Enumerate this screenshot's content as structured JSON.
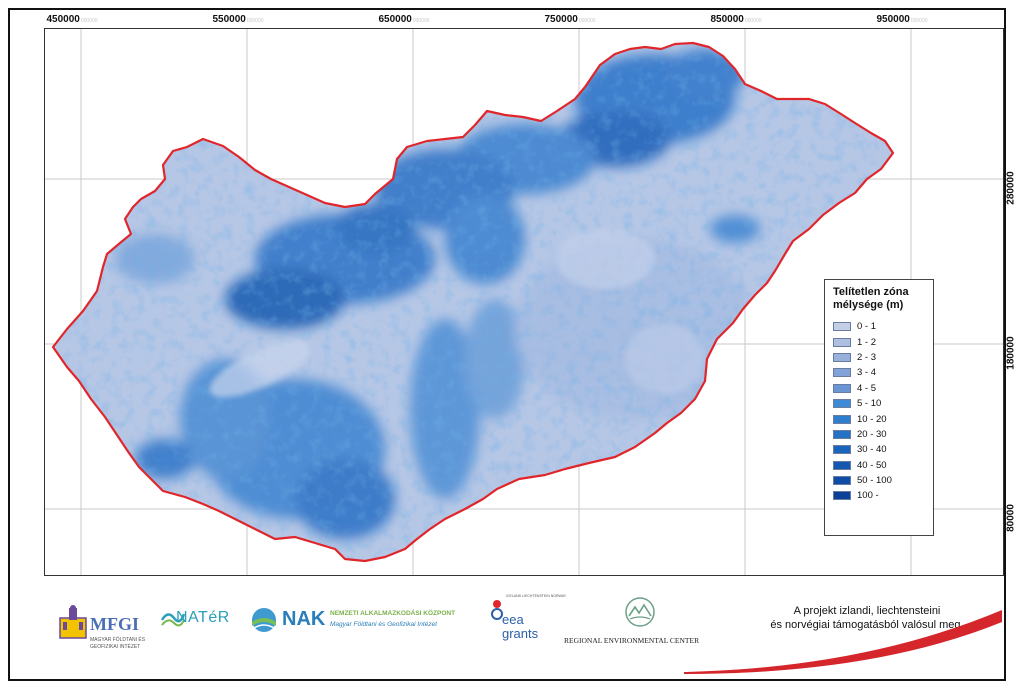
{
  "map": {
    "top_ticks": [
      "450000",
      "550000",
      "650000",
      "750000",
      "850000",
      "950000"
    ],
    "right_ticks": [
      "280000",
      "180000",
      "80000"
    ],
    "tick_suffix": "000000",
    "boundary_color": "#e0262b"
  },
  "legend": {
    "title_line1": "Telítetlen zóna",
    "title_line2": "mélysége (m)",
    "items": [
      {
        "label": "0 - 1",
        "color": "#c3cfe6"
      },
      {
        "label": "1 - 2",
        "color": "#aec0e1"
      },
      {
        "label": "2 - 3",
        "color": "#98b0dc"
      },
      {
        "label": "3 - 4",
        "color": "#82a3d9"
      },
      {
        "label": "4 - 5",
        "color": "#6b96d6"
      },
      {
        "label": "5 - 10",
        "color": "#3f8ad4"
      },
      {
        "label": "10 - 20",
        "color": "#2f7dcd"
      },
      {
        "label": "20 - 30",
        "color": "#2471c5"
      },
      {
        "label": "30 - 40",
        "color": "#1a64bb"
      },
      {
        "label": "40 - 50",
        "color": "#1458b0"
      },
      {
        "label": "50 - 100",
        "color": "#104ca6"
      },
      {
        "label": "100 -",
        "color": "#0b3f98"
      }
    ]
  },
  "footer": {
    "mfgi_name": "MFGI",
    "mfgi_sub1": "MAGYAR FÖLDTANI ÉS",
    "mfgi_sub2": "GEOFIZIKAI INTÉZET",
    "nater_name": "NATéR",
    "nak_name": "NAK",
    "nak_line1": "NEMZETI ALKALMAZKODÁSI KÖZPONT",
    "nak_line2": "Magyar Földtani és Geofizikai Intézet",
    "eea_small": "ICELAND LIECHTENSTEIN NORWAY",
    "eea_line1": "eea",
    "eea_line2": "grants",
    "rec_name": "REGIONAL ENVIRONMENTAL CENTER",
    "note_line1": "A projekt izlandi, liechtensteini",
    "note_line2": "és norvégiai támogatásból valósul meg."
  }
}
